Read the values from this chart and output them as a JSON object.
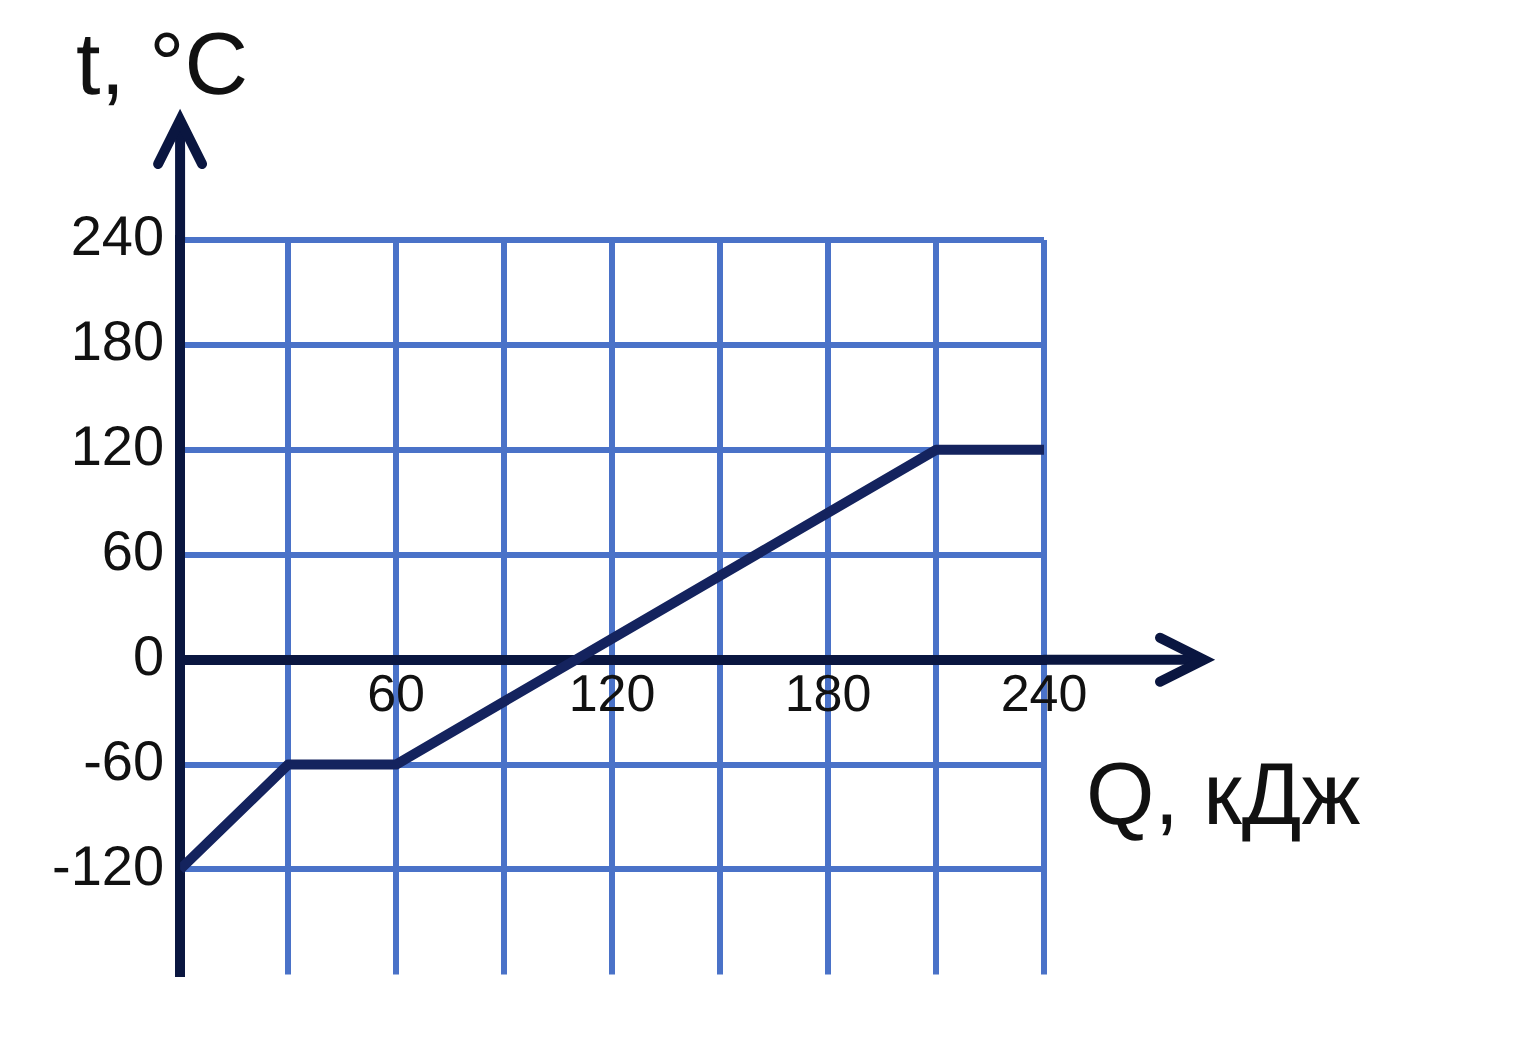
{
  "chart_data": {
    "type": "line",
    "xlabel": "Q, кДж",
    "ylabel": "t, °C",
    "x": [
      0,
      30,
      60,
      210,
      240
    ],
    "values": [
      -120,
      -60,
      -60,
      120,
      120
    ],
    "color": "#14235e",
    "xlim": [
      0,
      240
    ],
    "ylim": [
      -180,
      240
    ],
    "xticks": [
      {
        "value": 30,
        "label": null
      },
      60,
      {
        "value": 90,
        "label": null
      },
      120,
      {
        "value": 150,
        "label": null
      },
      180,
      {
        "value": 210,
        "label": null
      },
      240
    ],
    "yticks": [
      -120,
      -60,
      0,
      60,
      120,
      180,
      240
    ],
    "grid": true,
    "legend": false,
    "marker": "none",
    "line_style": "solid"
  }
}
